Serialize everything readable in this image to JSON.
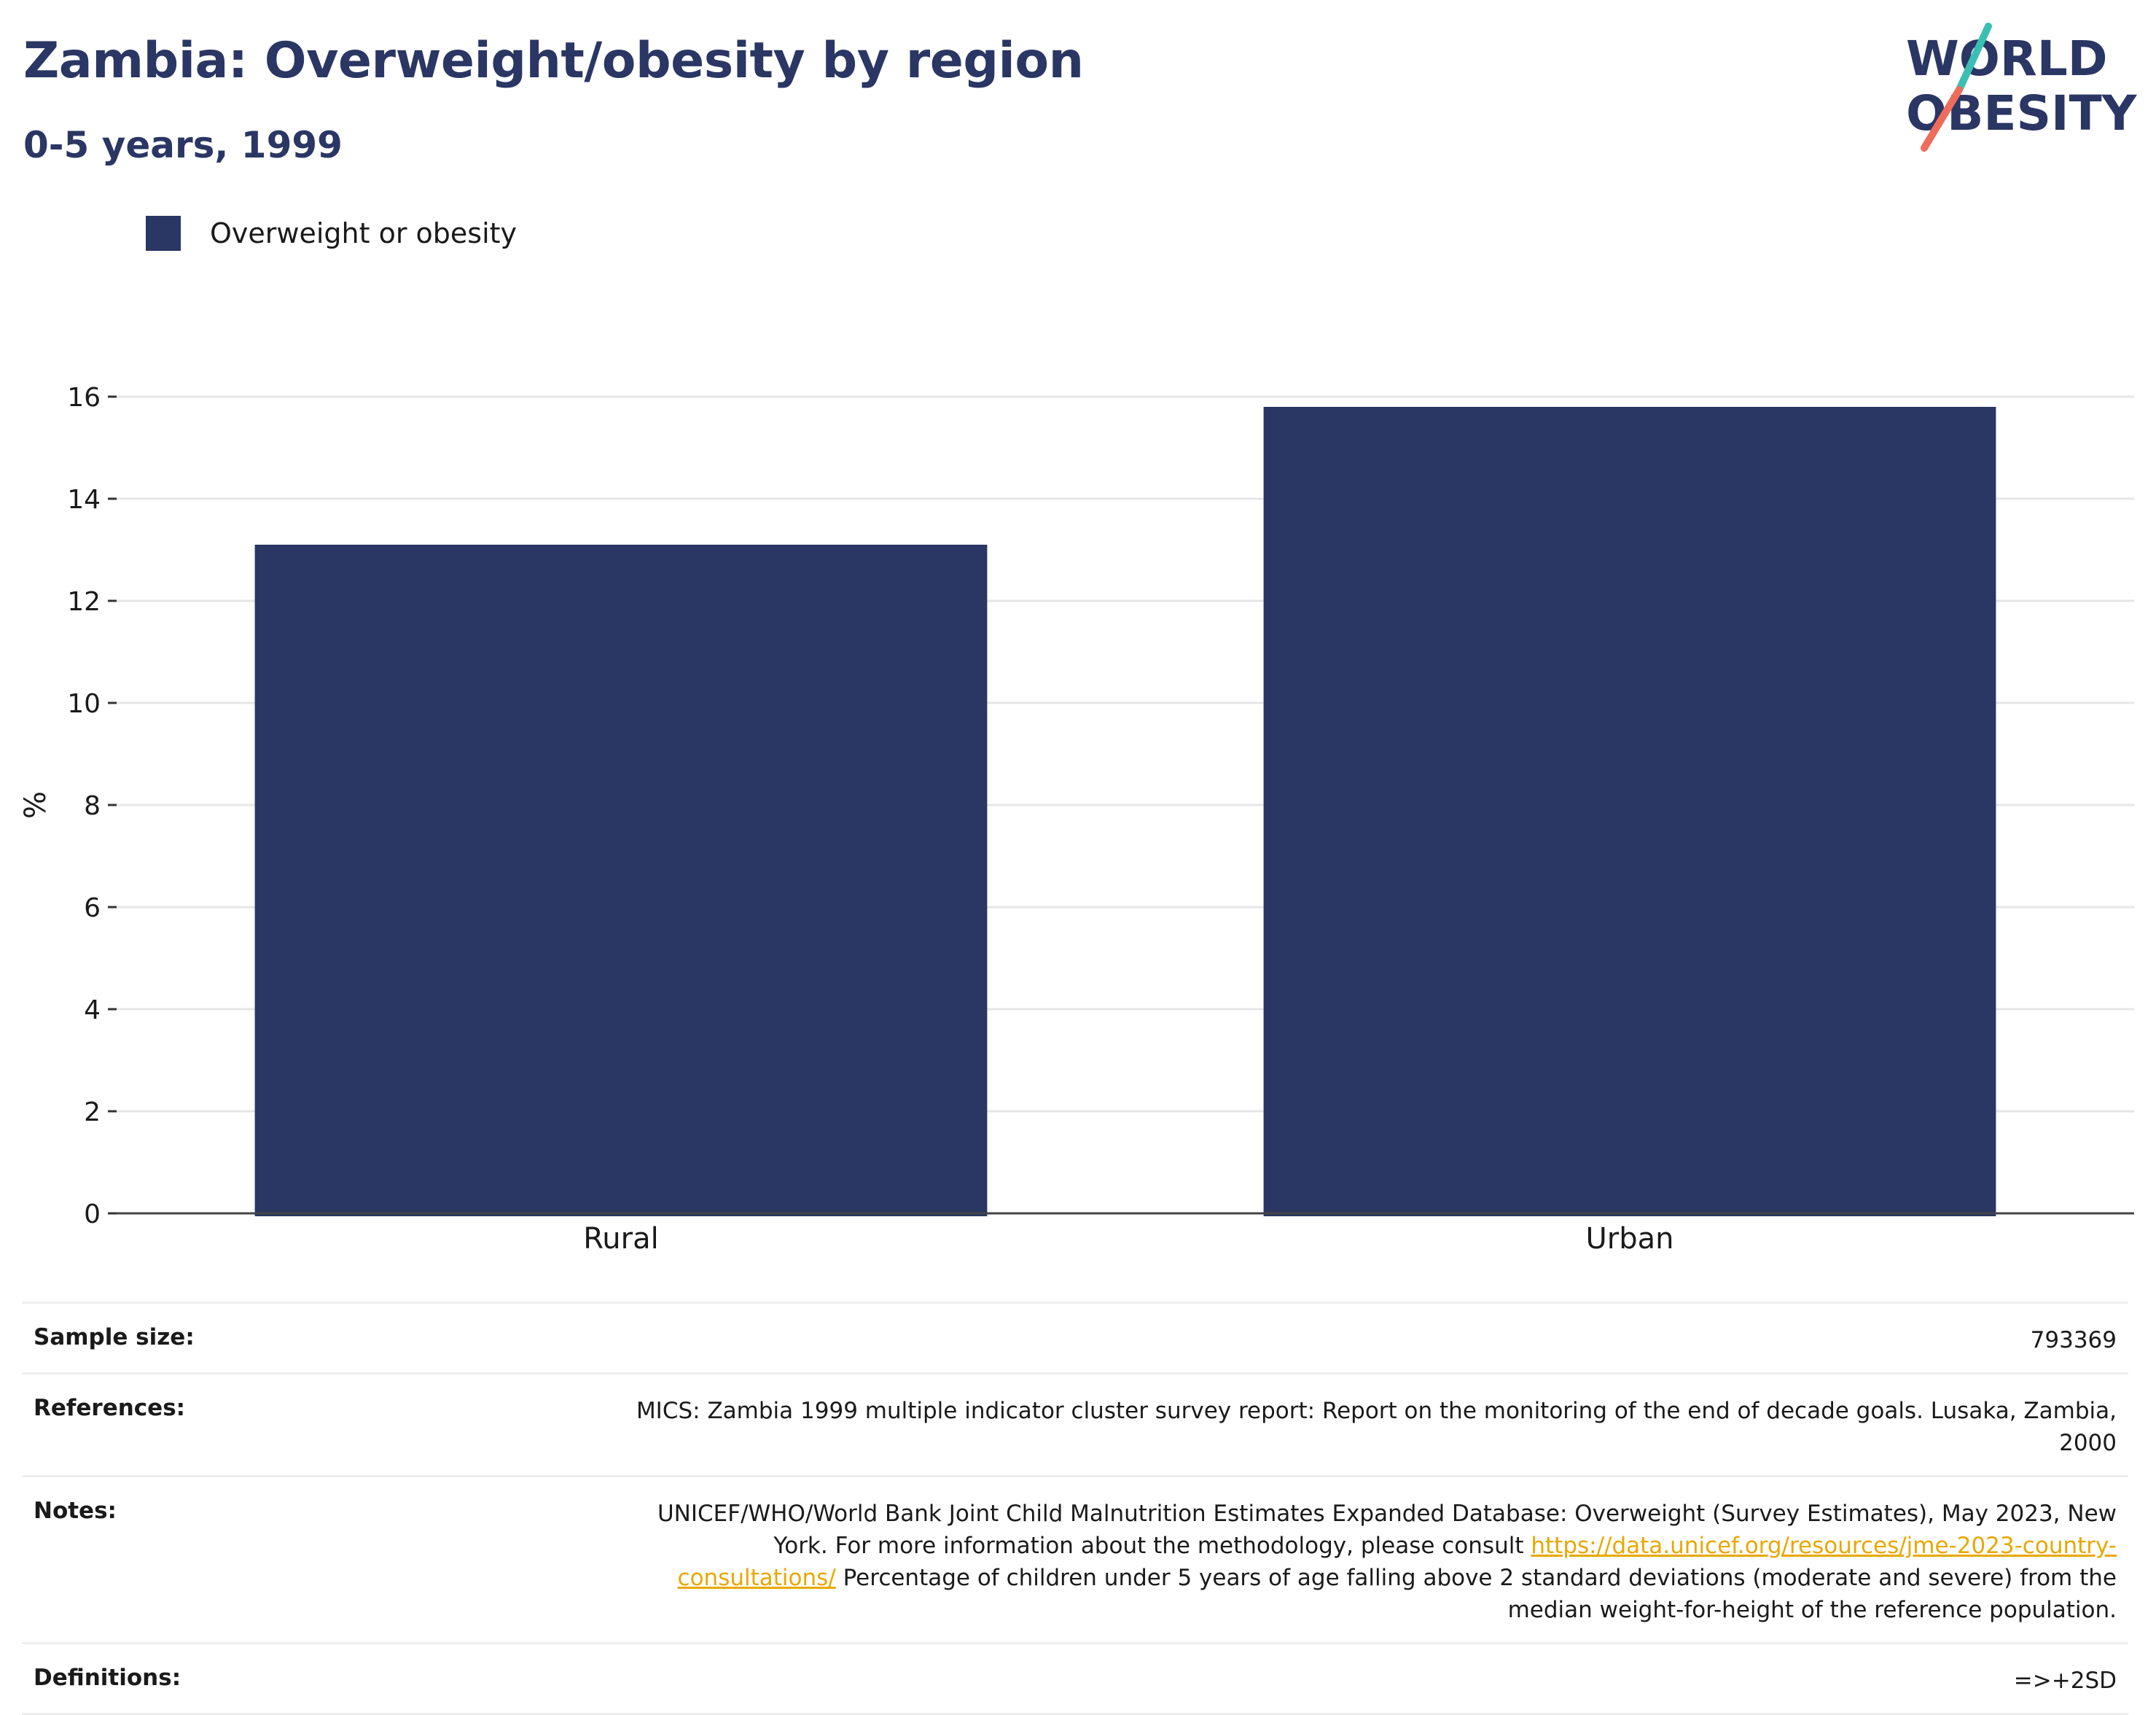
{
  "header": {
    "title": "Zambia: Overweight/obesity by region",
    "subtitle": "0-5 years, 1999"
  },
  "logo": {
    "line1": "WORLD",
    "line2": "OBESITY"
  },
  "colors": {
    "bar": "#2a3663",
    "title": "#2a3663",
    "link": "#e8a800",
    "logo_teal": "#3bbfb3",
    "logo_coral": "#ee6c5a"
  },
  "chart_data": {
    "type": "bar",
    "categories": [
      "Rural",
      "Urban"
    ],
    "series": [
      {
        "name": "Overweight or obesity",
        "values": [
          13.1,
          15.8
        ]
      }
    ],
    "ylabel": "%",
    "ylim": [
      0,
      16
    ],
    "yticks": [
      0,
      2,
      4,
      6,
      8,
      10,
      12,
      14,
      16
    ],
    "grid": true,
    "legend": "top-left"
  },
  "info": {
    "sample_size": {
      "label": "Sample size:",
      "value": "793369"
    },
    "references": {
      "label": "References:",
      "value": "MICS: Zambia 1999 multiple indicator cluster survey report: Report on the monitoring of the end of decade goals. Lusaka, Zambia, 2000"
    },
    "notes": {
      "label": "Notes:",
      "text_before": "UNICEF/WHO/World Bank Joint Child Malnutrition Estimates Expanded Database: Overweight (Survey Estimates), May 2023, New York. For more information about the methodology, please consult ",
      "link": "https://data.unicef.org/resources/jme-2023-country-consultations/",
      "text_after": " Percentage of children under 5 years of age falling above 2 standard deviations (moderate and severe) from the median weight-for-height of the reference population."
    },
    "definitions": {
      "label": "Definitions:",
      "value": "=>+2SD"
    }
  }
}
